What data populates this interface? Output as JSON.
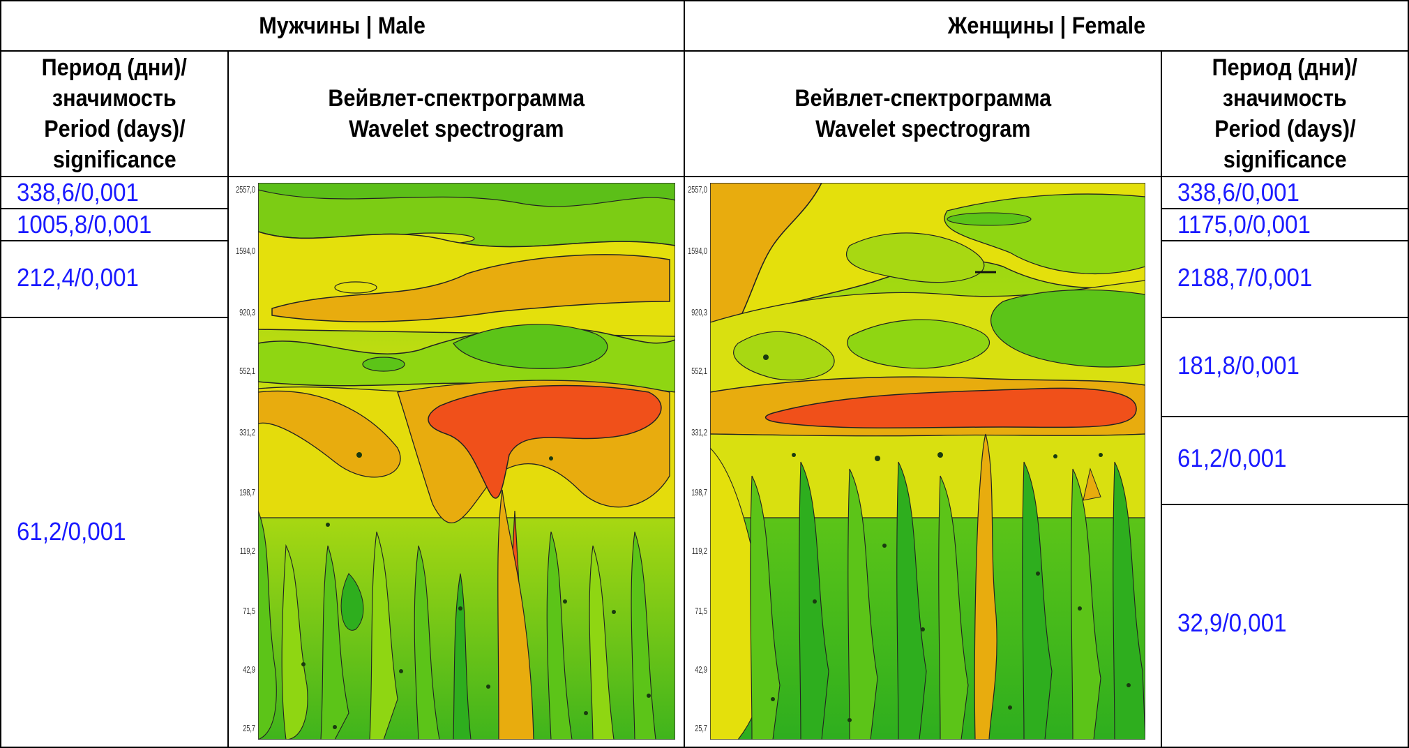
{
  "header": {
    "male": "Мужчины | Male",
    "female": "Женщины | Female"
  },
  "columns": {
    "period_left": [
      "Период (дни)/",
      "значимость",
      "Period (days)/",
      "significance"
    ],
    "spectro_left": [
      "Вейвлет-спектрограмма",
      "Wavelet spectrogram"
    ],
    "spectro_right": [
      "Вейвлет-спектрограмма",
      "Wavelet spectrogram"
    ],
    "period_right": [
      "Период (дни)/",
      "значимость",
      "Period (days)/",
      "significance"
    ]
  },
  "male_values": [
    "338,6/0,001",
    "1005,8/0,001",
    "212,4/0,001",
    "61,2/0,001"
  ],
  "female_values": [
    "338,6/0,001",
    "1175,0/0,001",
    "2188,7/0,001",
    "181,8/0,001",
    "61,2/0,001",
    "32,9/0,001"
  ],
  "y_ticks": [
    "2557,0",
    "1594,0",
    "920,3",
    "552,1",
    "331,2",
    "198,7",
    "119,2",
    "71,5",
    "42,9",
    "25,7"
  ],
  "colors": {
    "value_text": "#1a1aff",
    "spectrogram_levels": [
      "#2eae1e",
      "#5cc418",
      "#8fd612",
      "#c5e210",
      "#e8e00a",
      "#e9b20c",
      "#e88a10",
      "#f0501a"
    ]
  }
}
